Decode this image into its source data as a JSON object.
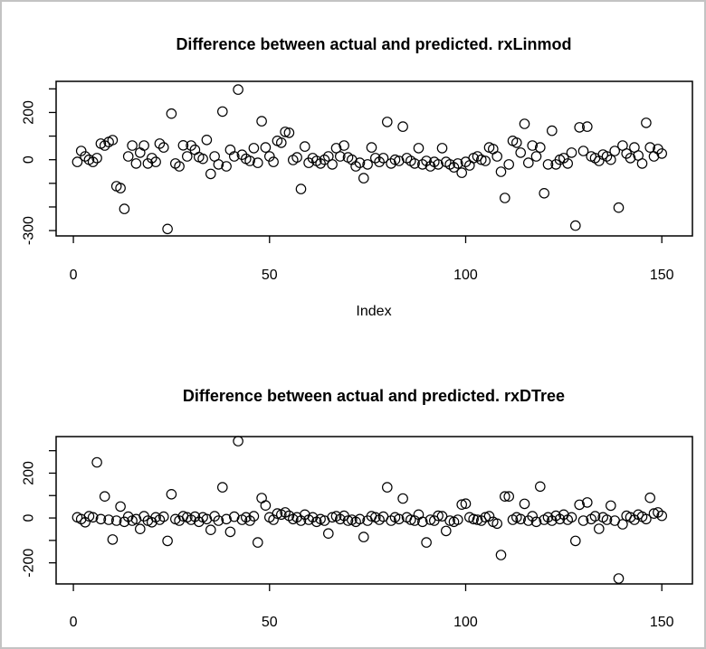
{
  "window": {
    "background": "#ffffff",
    "border_color": "#c3c3c3",
    "point_color": "#000000",
    "axis_color": "#000000"
  },
  "chart_data": [
    {
      "type": "scatter",
      "title": "Difference between actual and predicted. rxLinmod",
      "xlabel": "Index",
      "ylabel": "",
      "marker": "open-circle",
      "grid": false,
      "legend": "none",
      "x_start": 1,
      "xlim": [
        -4.4,
        157.8
      ],
      "ylim": [
        -322.6,
        331.8
      ],
      "xticks": [
        0,
        50,
        100,
        150
      ],
      "yticks": [
        300,
        200,
        100,
        0,
        -100,
        -200,
        -300
      ],
      "ytick_labels": [
        {
          "v": 200,
          "t": "200"
        },
        {
          "v": 0,
          "t": "0"
        },
        {
          "v": -300,
          "t": "-300"
        }
      ],
      "values": [
        -9,
        37,
        14,
        0,
        -9,
        7,
        68,
        60,
        75,
        83,
        -112,
        -120,
        -208,
        14,
        60,
        -16,
        30,
        60,
        -16,
        7,
        -9,
        68,
        52,
        -293,
        195,
        -16,
        -28,
        61,
        14,
        60,
        42,
        11,
        4,
        84,
        -60,
        14,
        -20,
        204,
        -28,
        42,
        14,
        297,
        21,
        4,
        -5,
        49,
        -13,
        163,
        52,
        14,
        -9,
        80,
        72,
        118,
        114,
        -1,
        10,
        -124,
        56,
        -13,
        7,
        -5,
        -16,
        0,
        14,
        -20,
        49,
        14,
        60,
        10,
        0,
        -28,
        -13,
        -78,
        -20,
        52,
        7,
        -9,
        7,
        160,
        -16,
        0,
        -5,
        140,
        7,
        -5,
        -16,
        49,
        -20,
        -5,
        -28,
        -9,
        -20,
        49,
        -9,
        -20,
        -32,
        -16,
        -55,
        -9,
        -24,
        7,
        14,
        0,
        -5,
        52,
        45,
        14,
        -51,
        -162,
        -20,
        80,
        72,
        30,
        152,
        -13,
        60,
        14,
        52,
        -142,
        -20,
        123,
        -20,
        0,
        7,
        -16,
        30,
        -279,
        137,
        37,
        140,
        14,
        7,
        -5,
        22,
        14,
        0,
        37,
        -203,
        60,
        26,
        7,
        52,
        18,
        -16,
        156,
        52,
        14,
        45,
        26
      ]
    },
    {
      "type": "scatter",
      "title": "Difference between actual and predicted. rxDTree",
      "xlabel": "",
      "ylabel": "",
      "marker": "open-circle",
      "grid": false,
      "legend": "none",
      "x_start": 1,
      "xlim": [
        -4.4,
        157.8
      ],
      "ylim": [
        -294,
        363
      ],
      "xticks": [
        0,
        50,
        100,
        150
      ],
      "yticks": [
        300,
        200,
        100,
        0,
        -100,
        -200
      ],
      "ytick_labels": [
        {
          "v": 200,
          "t": "200"
        },
        {
          "v": 0,
          "t": "0"
        },
        {
          "v": -200,
          "t": "-200"
        }
      ],
      "values": [
        3,
        -5,
        -19,
        8,
        3,
        248,
        -5,
        96,
        -8,
        -96,
        -12,
        51,
        -17,
        6,
        -12,
        -5,
        -49,
        8,
        -12,
        -19,
        3,
        -8,
        6,
        -102,
        106,
        -5,
        -12,
        8,
        3,
        -8,
        6,
        -17,
        3,
        -5,
        -53,
        8,
        -12,
        137,
        -5,
        -62,
        6,
        343,
        -8,
        3,
        -12,
        8,
        -109,
        89,
        56,
        3,
        -8,
        20,
        15,
        25,
        10,
        -5,
        3,
        -12,
        15,
        -8,
        3,
        -17,
        -5,
        -12,
        -69,
        3,
        8,
        -5,
        10,
        -12,
        -8,
        -17,
        -5,
        -85,
        -12,
        8,
        3,
        -8,
        6,
        137,
        -12,
        3,
        -5,
        87,
        3,
        -8,
        -12,
        15,
        -17,
        -109,
        -8,
        -12,
        10,
        8,
        -58,
        -12,
        -17,
        -8,
        60,
        64,
        3,
        -5,
        -8,
        -12,
        3,
        8,
        -17,
        -25,
        -165,
        96,
        96,
        -8,
        3,
        -5,
        63,
        -12,
        8,
        -17,
        140,
        -8,
        3,
        -12,
        10,
        -5,
        15,
        -8,
        3,
        -102,
        59,
        -12,
        69,
        -5,
        8,
        -48,
        3,
        -8,
        55,
        -12,
        -270,
        -28,
        10,
        3,
        -8,
        15,
        6,
        -5,
        90,
        20,
        25,
        10
      ]
    }
  ]
}
